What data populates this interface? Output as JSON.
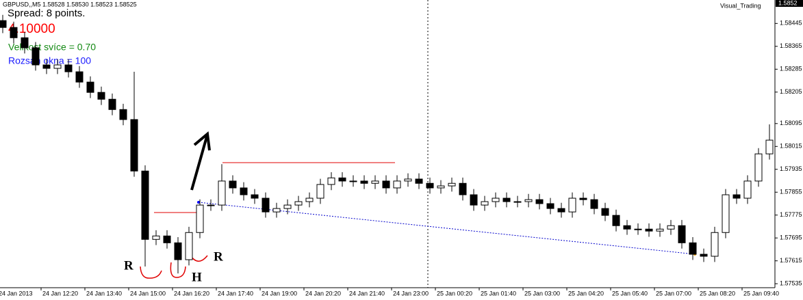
{
  "chart_data": {
    "type": "candlestick",
    "title": "GBPUSD,,M5  1.58528 1.58530 1.58523 1.58525",
    "indicator_name": "Visual_Trading",
    "current_price_label": "1.5852",
    "annotations": [
      "Spread: 8 points.",
      "4.10000",
      "Velikost svíce = 0.70",
      "Rozsah okna = 100",
      "R",
      "H",
      "R"
    ],
    "x": [
      0,
      1,
      2,
      3,
      4,
      5,
      6,
      7,
      8,
      9,
      10,
      11,
      12,
      13,
      14,
      15,
      16,
      17,
      18,
      19,
      20,
      21,
      22,
      23,
      24,
      25,
      26,
      27,
      28,
      29,
      30,
      31,
      32,
      33,
      34,
      35,
      36,
      37,
      38,
      39,
      40,
      41,
      42,
      43,
      44,
      45,
      46,
      47,
      48,
      49,
      50,
      51,
      52,
      53,
      54,
      55,
      56,
      57,
      58,
      59,
      60,
      61,
      62,
      63,
      64,
      65,
      66,
      67,
      68,
      69,
      70
    ],
    "open": [
      1.58455,
      1.58431,
      1.58395,
      1.5836,
      1.583,
      1.58288,
      1.583,
      1.58276,
      1.5824,
      1.58204,
      1.5818,
      1.58144,
      1.58109,
      1.57929,
      1.5769,
      1.57702,
      1.57678,
      1.57619,
      1.57714,
      1.5781,
      1.5781,
      1.57894,
      1.5787,
      1.57846,
      1.57834,
      1.57786,
      1.57798,
      1.5781,
      1.57822,
      1.57834,
      1.57882,
      1.57905,
      1.57894,
      1.57894,
      1.57886,
      1.57894,
      1.5787,
      1.57894,
      1.57901,
      1.57886,
      1.5787,
      1.57877,
      1.57886,
      1.57846,
      1.5781,
      1.57822,
      1.57834,
      1.57822,
      1.57822,
      1.57829,
      1.57815,
      1.57798,
      1.57786,
      1.57834,
      1.57829,
      1.57798,
      1.57774,
      1.57738,
      1.57726,
      1.57726,
      1.57719,
      1.57726,
      1.57738,
      1.57678,
      1.57638,
      1.57631,
      1.57714,
      1.57846,
      1.57834,
      1.57894,
      1.57989
    ],
    "high": [
      1.58475,
      1.58451,
      1.58415,
      1.5838,
      1.5832,
      1.5832,
      1.5832,
      1.58296,
      1.5826,
      1.58224,
      1.582,
      1.58164,
      1.58276,
      1.57949,
      1.57722,
      1.57722,
      1.57698,
      1.57734,
      1.5783,
      1.5783,
      1.57953,
      1.57914,
      1.5789,
      1.57866,
      1.57854,
      1.57818,
      1.5783,
      1.57842,
      1.57854,
      1.57902,
      1.57925,
      1.57925,
      1.57914,
      1.57914,
      1.57914,
      1.57914,
      1.57914,
      1.57921,
      1.57921,
      1.57906,
      1.57897,
      1.57906,
      1.57906,
      1.57866,
      1.57842,
      1.57854,
      1.57854,
      1.57842,
      1.57849,
      1.57849,
      1.57835,
      1.57818,
      1.57854,
      1.57854,
      1.57849,
      1.57818,
      1.57794,
      1.57758,
      1.57746,
      1.57746,
      1.57746,
      1.57758,
      1.57758,
      1.57698,
      1.57658,
      1.57734,
      1.57866,
      1.57866,
      1.57914,
      1.58009,
      1.58092
    ],
    "low": [
      1.58411,
      1.58375,
      1.5834,
      1.5828,
      1.58268,
      1.58268,
      1.58256,
      1.5822,
      1.58184,
      1.5816,
      1.58124,
      1.58089,
      1.57909,
      1.57595,
      1.5767,
      1.57658,
      1.57571,
      1.57599,
      1.57694,
      1.5779,
      1.5779,
      1.5785,
      1.57826,
      1.57814,
      1.57766,
      1.57766,
      1.57778,
      1.5779,
      1.57802,
      1.57814,
      1.57862,
      1.57874,
      1.57874,
      1.57866,
      1.57866,
      1.5785,
      1.5785,
      1.57874,
      1.57866,
      1.5785,
      1.5785,
      1.57857,
      1.57826,
      1.5779,
      1.5779,
      1.57802,
      1.57802,
      1.57802,
      1.57802,
      1.57795,
      1.57778,
      1.57766,
      1.57766,
      1.57809,
      1.57778,
      1.57754,
      1.57718,
      1.57706,
      1.57706,
      1.57699,
      1.57699,
      1.57706,
      1.57658,
      1.57618,
      1.57611,
      1.57611,
      1.57694,
      1.57814,
      1.57814,
      1.57874,
      1.57969
    ],
    "close": [
      1.58431,
      1.58395,
      1.5836,
      1.583,
      1.58288,
      1.583,
      1.58276,
      1.5824,
      1.58204,
      1.5818,
      1.58144,
      1.58109,
      1.57929,
      1.5769,
      1.57702,
      1.57678,
      1.57619,
      1.57714,
      1.5781,
      1.5781,
      1.57894,
      1.5787,
      1.57846,
      1.57834,
      1.57786,
      1.57798,
      1.5781,
      1.57822,
      1.57834,
      1.57882,
      1.57905,
      1.57894,
      1.57894,
      1.57886,
      1.57894,
      1.5787,
      1.57894,
      1.57901,
      1.57886,
      1.5787,
      1.57877,
      1.57886,
      1.57846,
      1.5781,
      1.57822,
      1.57834,
      1.57822,
      1.57822,
      1.57829,
      1.57815,
      1.57798,
      1.57786,
      1.57834,
      1.57829,
      1.57798,
      1.57774,
      1.57738,
      1.57726,
      1.57726,
      1.57719,
      1.57726,
      1.57738,
      1.57678,
      1.57638,
      1.57631,
      1.57714,
      1.57846,
      1.57834,
      1.57894,
      1.57989,
      1.58037
    ],
    "up_color": "#ffffff",
    "down_color": "#000000",
    "xlim": [
      -0.25,
      70.5
    ],
    "xticks": [
      {
        "value": 0,
        "label": "24 Jan 2013"
      },
      {
        "value": 4,
        "label": "24 Jan 12:20"
      },
      {
        "value": 8,
        "label": "24 Jan 13:40"
      },
      {
        "value": 12,
        "label": "24 Jan 15:00"
      },
      {
        "value": 16,
        "label": "24 Jan 16:20"
      },
      {
        "value": 20,
        "label": "24 Jan 17:40"
      },
      {
        "value": 24,
        "label": "24 Jan 19:00"
      },
      {
        "value": 28,
        "label": "24 Jan 20:20"
      },
      {
        "value": 32,
        "label": "24 Jan 21:40"
      },
      {
        "value": 36,
        "label": "24 Jan 23:00"
      },
      {
        "value": 40,
        "label": "25 Jan 00:20"
      },
      {
        "value": 44,
        "label": "25 Jan 01:40"
      },
      {
        "value": 48,
        "label": "25 Jan 03:00"
      },
      {
        "value": 52,
        "label": "25 Jan 04:20"
      },
      {
        "value": 56,
        "label": "25 Jan 05:40"
      },
      {
        "value": 60,
        "label": "25 Jan 07:00"
      },
      {
        "value": 64,
        "label": "25 Jan 08:20"
      },
      {
        "value": 68,
        "label": "25 Jan 09:40"
      }
    ],
    "ylim": [
      1.5749,
      1.58527
    ],
    "yticks": [
      1.58445,
      1.58365,
      1.58285,
      1.58205,
      1.58095,
      1.58015,
      1.57935,
      1.57855,
      1.57775,
      1.57695,
      1.57615,
      1.57535
    ]
  }
}
